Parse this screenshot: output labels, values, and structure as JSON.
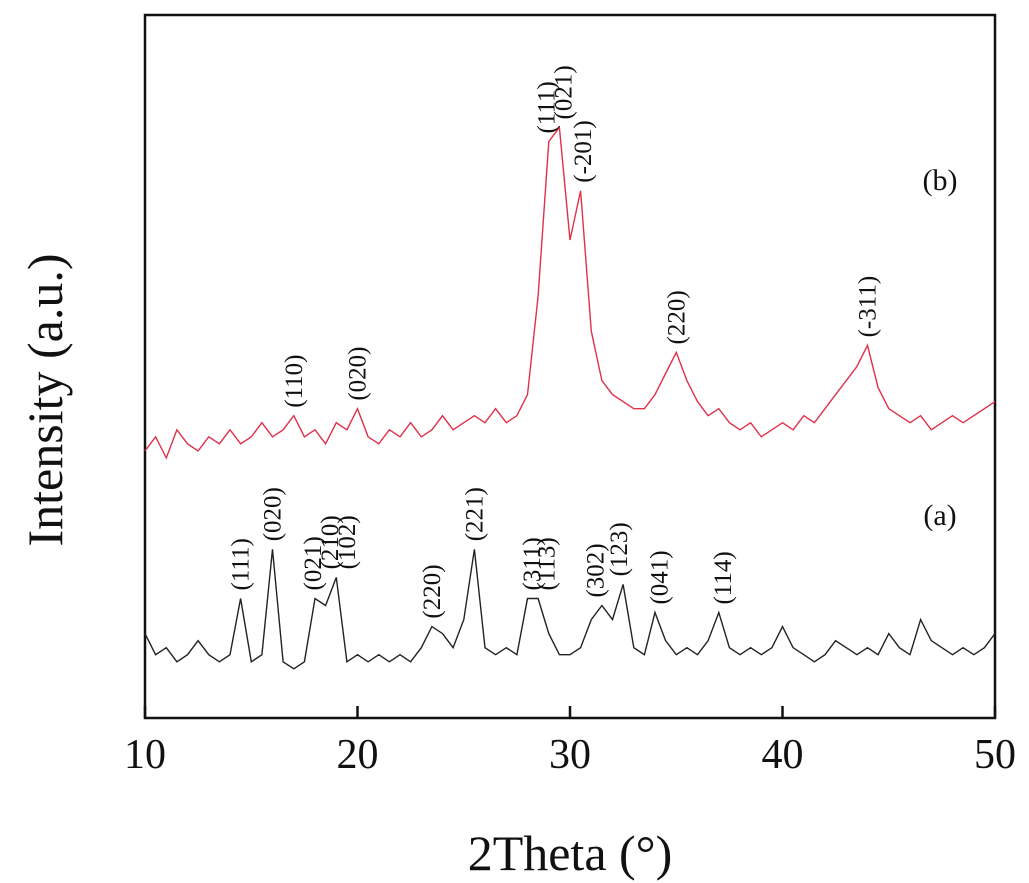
{
  "chart_data": {
    "type": "line",
    "x_label": "2Theta (°)",
    "y_label": "Intensity (a.u.)",
    "xlim": [
      10,
      50
    ],
    "xticks": [
      10,
      20,
      30,
      40,
      50
    ],
    "ylim": [
      0,
      100
    ],
    "yticks": [],
    "x": [
      10,
      10.5,
      11,
      11.5,
      12,
      12.5,
      13,
      13.5,
      14,
      14.5,
      15,
      15.5,
      16,
      16.5,
      17,
      17.5,
      18,
      18.5,
      19,
      19.5,
      20,
      20.5,
      21,
      21.5,
      22,
      22.5,
      23,
      23.5,
      24,
      24.5,
      25,
      25.5,
      26,
      26.5,
      27,
      27.5,
      28,
      28.5,
      29,
      29.5,
      30,
      30.5,
      31,
      31.5,
      32,
      32.5,
      33,
      33.5,
      34,
      34.5,
      35,
      35.5,
      36,
      36.5,
      37,
      37.5,
      38,
      38.5,
      39,
      39.5,
      40,
      40.5,
      41,
      41.5,
      42,
      42.5,
      43,
      43.5,
      44,
      44.5,
      45,
      45.5,
      46,
      46.5,
      47,
      47.5,
      48,
      48.5,
      49,
      49.5,
      50
    ],
    "series": [
      {
        "name": "(a)",
        "color": "#222222",
        "values": [
          12,
          9,
          10,
          8,
          9,
          11,
          9,
          8,
          9,
          17,
          8,
          9,
          24,
          8,
          7,
          8,
          17,
          16,
          20,
          8,
          9,
          8,
          9,
          8,
          9,
          8,
          10,
          13,
          12,
          10,
          14,
          24,
          10,
          9,
          10,
          9,
          17,
          17,
          12,
          9,
          9,
          10,
          14,
          16,
          14,
          19,
          10,
          9,
          15,
          11,
          9,
          10,
          9,
          11,
          15,
          10,
          9,
          10,
          9,
          10,
          13,
          10,
          9,
          8,
          9,
          11,
          10,
          9,
          10,
          9,
          12,
          10,
          9,
          14,
          11,
          10,
          9,
          10,
          9,
          10,
          12
        ],
        "peak_labels": [
          {
            "text": "(111)",
            "x": 14.5
          },
          {
            "text": "(020)",
            "x": 16
          },
          {
            "text": "(021)",
            "x": 17.9
          },
          {
            "text": "(210)",
            "x": 18.7
          },
          {
            "text": "(102)",
            "x": 19.5
          },
          {
            "text": "(220)",
            "x": 23.5
          },
          {
            "text": "(221)",
            "x": 25.5
          },
          {
            "text": "(311)",
            "x": 28.2
          },
          {
            "text": "(113)",
            "x": 28.9
          },
          {
            "text": "(302)",
            "x": 31.2
          },
          {
            "text": "(123)",
            "x": 32.3
          },
          {
            "text": "(041)",
            "x": 34.2
          },
          {
            "text": "(114)",
            "x": 37.2
          }
        ]
      },
      {
        "name": "(b)",
        "color": "#e0304a",
        "values": [
          38,
          40,
          37,
          41,
          39,
          38,
          40,
          39,
          41,
          39,
          40,
          42,
          40,
          41,
          43,
          40,
          41,
          39,
          42,
          41,
          44,
          40,
          39,
          41,
          40,
          42,
          40,
          41,
          43,
          41,
          42,
          43,
          42,
          44,
          42,
          43,
          46,
          60,
          82,
          84,
          68,
          75,
          55,
          48,
          46,
          45,
          44,
          44,
          46,
          49,
          52,
          48,
          45,
          43,
          44,
          42,
          41,
          42,
          40,
          41,
          42,
          41,
          43,
          42,
          44,
          46,
          48,
          50,
          53,
          47,
          44,
          43,
          42,
          43,
          41,
          42,
          43,
          42,
          43,
          44,
          45
        ],
        "peak_labels": [
          {
            "text": "(110)",
            "x": 17
          },
          {
            "text": "(020)",
            "x": 20
          },
          {
            "text": "(111)",
            "x": 28.9
          },
          {
            "text": "(021)",
            "x": 29.7
          },
          {
            "text": "(-201)",
            "x": 30.6
          },
          {
            "text": "(220)",
            "x": 35
          },
          {
            "text": "(-311)",
            "x": 44
          }
        ]
      }
    ]
  }
}
